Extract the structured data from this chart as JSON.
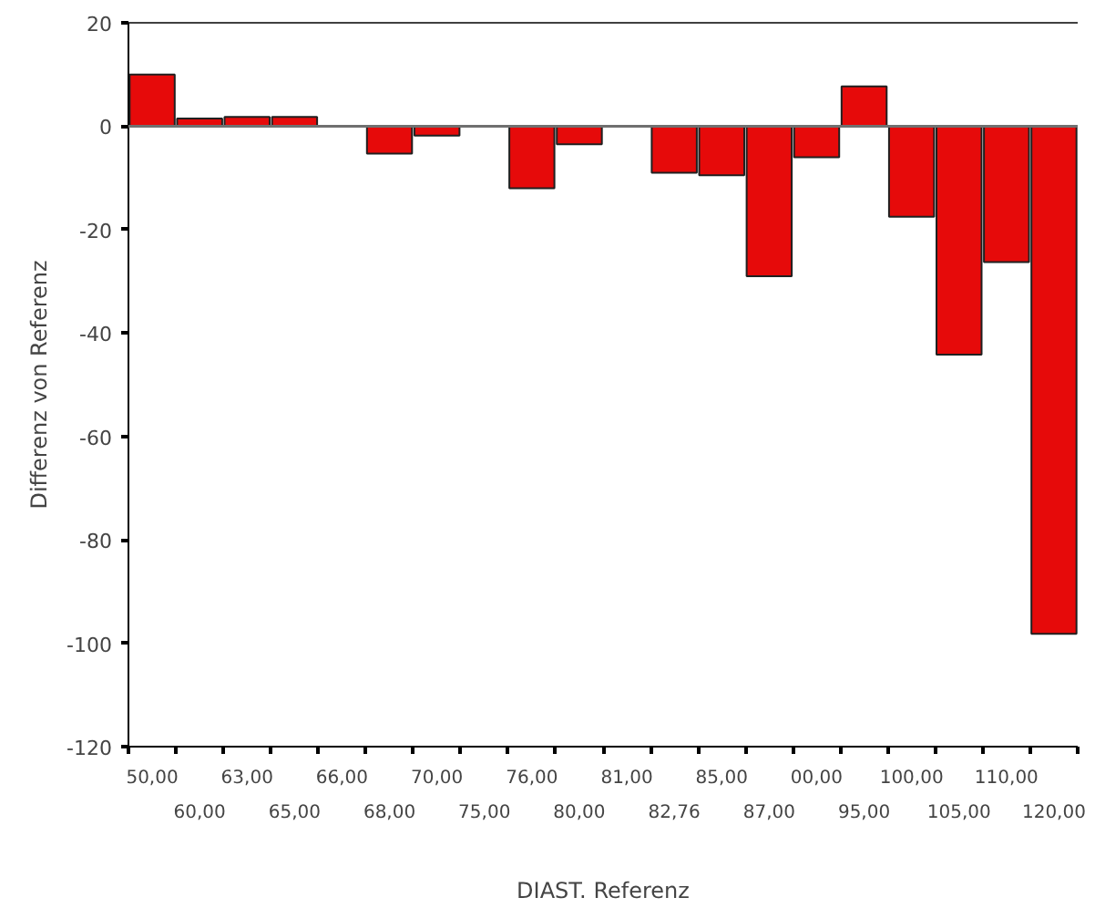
{
  "chart_data": {
    "type": "bar",
    "xlabel": "DIAST. Referenz",
    "ylabel": "Differenz von Referenz",
    "categories": [
      "50,00",
      "60,00",
      "63,00",
      "65,00",
      "66,00",
      "68,00",
      "70,00",
      "75,00",
      "76,00",
      "80,00",
      "81,00",
      "82,76",
      "85,00",
      "87,00",
      "00,00",
      "95,00",
      "100,00",
      "105,00",
      "110,00",
      "120,00"
    ],
    "values": [
      10,
      1.5,
      1.8,
      1.8,
      null,
      -5.3,
      -1.8,
      null,
      -12,
      -3.5,
      null,
      -9,
      -9.5,
      -29,
      -6,
      7.7,
      -17.5,
      -44.2,
      -26.3,
      -98.2
    ],
    "color": "#e60a0a",
    "ylim": [
      -120,
      20
    ],
    "yticks": [
      20,
      0,
      -20,
      -40,
      -60,
      -80,
      -100,
      -120
    ]
  }
}
